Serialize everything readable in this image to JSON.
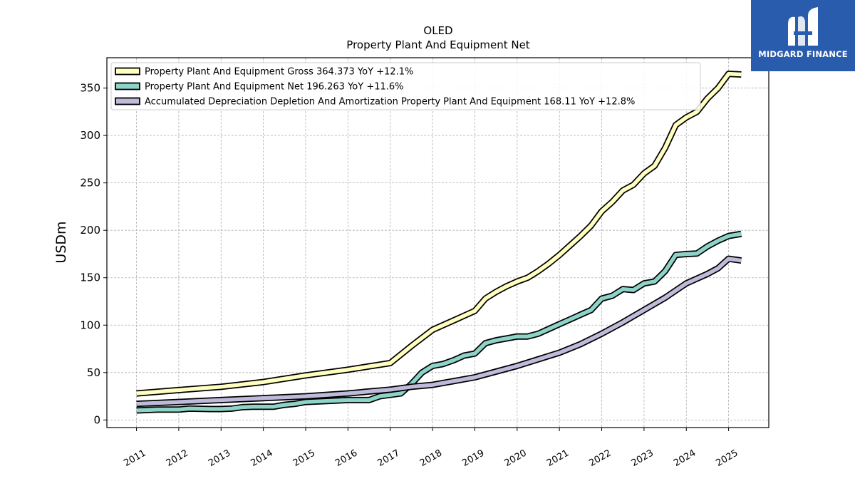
{
  "brand": {
    "name": "MIDGARD FINANCE",
    "logo_icon": "midgard-logo-icon",
    "background": "#2a5cad"
  },
  "chart_data": {
    "type": "line",
    "title": "OLED",
    "subtitle": "Property Plant And Equipment Net",
    "ylabel": "USDm",
    "xlabel": "",
    "x_ticks": [
      "2011",
      "2012",
      "2013",
      "2014",
      "2015",
      "2016",
      "2017",
      "2018",
      "2019",
      "2020",
      "2021",
      "2022",
      "2023",
      "2024",
      "2025"
    ],
    "y_ticks": [
      "0",
      "50",
      "100",
      "150",
      "200",
      "250",
      "300",
      "350"
    ],
    "xlim": [
      2010.3,
      2025.95
    ],
    "ylim": [
      -8,
      382
    ],
    "grid": true,
    "legend_position": "top-left",
    "series": [
      {
        "name": "Property Plant And Equipment Gross  364.373 YoY +12.1%",
        "color": "#ffffbf",
        "points": [
          [
            2011.0,
            28
          ],
          [
            2012.0,
            31.5
          ],
          [
            2013.0,
            35
          ],
          [
            2014.0,
            40
          ],
          [
            2015.0,
            47
          ],
          [
            2016.0,
            53
          ],
          [
            2017.0,
            60
          ],
          [
            2017.5,
            78
          ],
          [
            2018.0,
            95
          ],
          [
            2018.5,
            105
          ],
          [
            2019.0,
            115
          ],
          [
            2019.25,
            128
          ],
          [
            2019.5,
            135
          ],
          [
            2019.75,
            141
          ],
          [
            2020.0,
            146
          ],
          [
            2020.25,
            150
          ],
          [
            2020.5,
            157
          ],
          [
            2020.75,
            165
          ],
          [
            2021.0,
            174
          ],
          [
            2021.25,
            184
          ],
          [
            2021.5,
            194
          ],
          [
            2021.75,
            205
          ],
          [
            2022.0,
            220
          ],
          [
            2022.25,
            230
          ],
          [
            2022.5,
            242
          ],
          [
            2022.75,
            248
          ],
          [
            2023.0,
            260
          ],
          [
            2023.25,
            268
          ],
          [
            2023.5,
            287
          ],
          [
            2023.75,
            311
          ],
          [
            2024.0,
            319
          ],
          [
            2024.25,
            325
          ],
          [
            2024.5,
            339
          ],
          [
            2024.75,
            350
          ],
          [
            2025.0,
            365
          ],
          [
            2025.3,
            364.373
          ]
        ]
      },
      {
        "name": "Property Plant And Equipment Net  196.263 YoY +11.6%",
        "color": "#8dd3c7",
        "points": [
          [
            2011.0,
            10
          ],
          [
            2011.5,
            11
          ],
          [
            2012.0,
            11
          ],
          [
            2012.25,
            12
          ],
          [
            2012.75,
            11.5
          ],
          [
            2013.0,
            11.5
          ],
          [
            2013.25,
            12
          ],
          [
            2013.5,
            13.5
          ],
          [
            2013.75,
            14
          ],
          [
            2014.25,
            14
          ],
          [
            2014.5,
            16
          ],
          [
            2014.75,
            17
          ],
          [
            2015.0,
            19
          ],
          [
            2015.5,
            20
          ],
          [
            2016.0,
            21
          ],
          [
            2016.5,
            21
          ],
          [
            2016.75,
            25
          ],
          [
            2017.25,
            28
          ],
          [
            2017.5,
            38
          ],
          [
            2017.75,
            50
          ],
          [
            2018.0,
            57
          ],
          [
            2018.25,
            59
          ],
          [
            2018.5,
            63
          ],
          [
            2018.75,
            68
          ],
          [
            2019.0,
            70
          ],
          [
            2019.25,
            81
          ],
          [
            2019.5,
            84
          ],
          [
            2019.75,
            86
          ],
          [
            2020.0,
            88
          ],
          [
            2020.25,
            88
          ],
          [
            2020.5,
            91
          ],
          [
            2020.75,
            96
          ],
          [
            2021.0,
            101
          ],
          [
            2021.25,
            106
          ],
          [
            2021.5,
            111
          ],
          [
            2021.75,
            116
          ],
          [
            2022.0,
            128
          ],
          [
            2022.25,
            131
          ],
          [
            2022.5,
            138
          ],
          [
            2022.75,
            137
          ],
          [
            2023.0,
            144
          ],
          [
            2023.25,
            146
          ],
          [
            2023.5,
            157
          ],
          [
            2023.75,
            174
          ],
          [
            2024.0,
            175
          ],
          [
            2024.25,
            175.5
          ],
          [
            2024.5,
            183
          ],
          [
            2024.75,
            189
          ],
          [
            2025.0,
            194
          ],
          [
            2025.3,
            196.263
          ]
        ]
      },
      {
        "name": "Accumulated Depreciation Depletion And Amortization Property Plant And Equipment  168.11 YoY +12.8%",
        "color": "#bebada",
        "points": [
          [
            2011.0,
            17
          ],
          [
            2012.0,
            19
          ],
          [
            2013.0,
            21
          ],
          [
            2014.0,
            23
          ],
          [
            2015.0,
            25
          ],
          [
            2016.0,
            28
          ],
          [
            2016.5,
            30
          ],
          [
            2017.0,
            32
          ],
          [
            2017.5,
            35
          ],
          [
            2018.0,
            37
          ],
          [
            2018.5,
            41
          ],
          [
            2019.0,
            45
          ],
          [
            2019.5,
            51
          ],
          [
            2020.0,
            57
          ],
          [
            2020.5,
            64
          ],
          [
            2021.0,
            71
          ],
          [
            2021.5,
            80
          ],
          [
            2022.0,
            91
          ],
          [
            2022.5,
            103
          ],
          [
            2023.0,
            116
          ],
          [
            2023.5,
            129
          ],
          [
            2024.0,
            144
          ],
          [
            2024.5,
            154
          ],
          [
            2024.75,
            160
          ],
          [
            2025.0,
            170
          ],
          [
            2025.3,
            168.11
          ]
        ]
      }
    ]
  }
}
